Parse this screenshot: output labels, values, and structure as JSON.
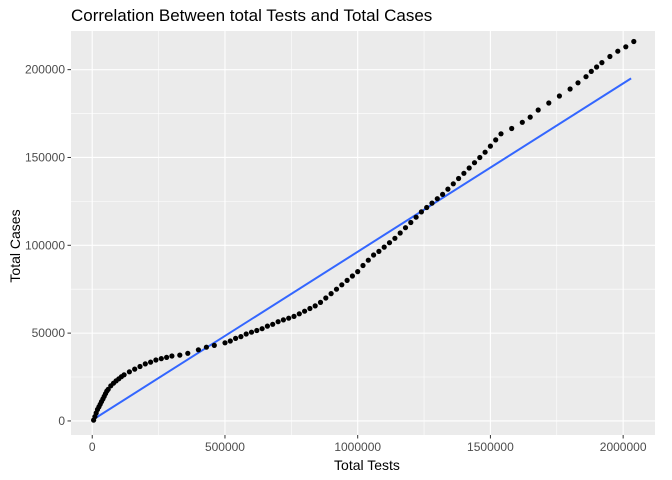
{
  "chart_data": {
    "type": "scatter",
    "title": "Correlation Between total Tests and Total Cases",
    "xlabel": "Total Tests",
    "ylabel": "Total Cases",
    "xlim": [
      -80000,
      2120000
    ],
    "ylim": [
      -8000,
      222000
    ],
    "grid": true,
    "x_ticks": [
      0,
      500000,
      1000000,
      1500000,
      2000000
    ],
    "x_tick_labels": [
      "0",
      "500000",
      "1000000",
      "1500000",
      "2000000"
    ],
    "y_ticks": [
      0,
      50000,
      100000,
      150000,
      200000
    ],
    "y_tick_labels": [
      "0",
      "50000",
      "100000",
      "150000",
      "200000"
    ],
    "colors": {
      "panel": "#ebebeb",
      "grid": "#ffffff",
      "points": "#000000",
      "trend": "#3366ff"
    },
    "points": {
      "x": [
        5000,
        10000,
        15000,
        20000,
        25000,
        30000,
        35000,
        40000,
        45000,
        50000,
        55000,
        60000,
        70000,
        80000,
        90000,
        100000,
        110000,
        120000,
        140000,
        160000,
        180000,
        200000,
        220000,
        240000,
        260000,
        280000,
        300000,
        330000,
        360000,
        400000,
        430000,
        460000,
        500000,
        520000,
        540000,
        560000,
        580000,
        600000,
        620000,
        640000,
        660000,
        680000,
        700000,
        720000,
        740000,
        760000,
        780000,
        800000,
        820000,
        840000,
        860000,
        880000,
        900000,
        920000,
        940000,
        960000,
        980000,
        1000000,
        1020000,
        1040000,
        1060000,
        1080000,
        1100000,
        1120000,
        1140000,
        1160000,
        1180000,
        1200000,
        1220000,
        1240000,
        1260000,
        1280000,
        1300000,
        1320000,
        1340000,
        1360000,
        1380000,
        1400000,
        1420000,
        1440000,
        1460000,
        1480000,
        1500000,
        1520000,
        1540000,
        1580000,
        1620000,
        1650000,
        1680000,
        1720000,
        1760000,
        1800000,
        1830000,
        1860000,
        1880000,
        1900000,
        1920000,
        1950000,
        1980000,
        2010000,
        2040000
      ],
      "y": [
        500,
        2500,
        4500,
        6500,
        8000,
        9500,
        11000,
        12500,
        14000,
        15500,
        17000,
        18000,
        20000,
        21500,
        22800,
        24000,
        25200,
        26300,
        28000,
        29500,
        31000,
        32500,
        33500,
        34700,
        35500,
        36200,
        37000,
        37500,
        38500,
        40500,
        42000,
        43000,
        44500,
        45500,
        47000,
        48000,
        49500,
        50500,
        51500,
        52500,
        54000,
        55000,
        56500,
        57500,
        58500,
        59500,
        61000,
        62500,
        64000,
        65500,
        67500,
        70000,
        72500,
        75000,
        77500,
        80000,
        82500,
        85000,
        88500,
        91500,
        94500,
        96500,
        99000,
        101500,
        104000,
        107000,
        110000,
        113000,
        116000,
        119000,
        121500,
        124000,
        126500,
        129000,
        132000,
        135000,
        138000,
        141000,
        144000,
        147000,
        150000,
        153000,
        156500,
        160000,
        163500,
        166500,
        170000,
        173000,
        177000,
        181000,
        185000,
        189000,
        192500,
        196000,
        199000,
        201500,
        204000,
        207500,
        210500,
        213000,
        216000
      ]
    },
    "trend_line": {
      "x": [
        0,
        2030000
      ],
      "y": [
        500,
        195000
      ]
    }
  }
}
